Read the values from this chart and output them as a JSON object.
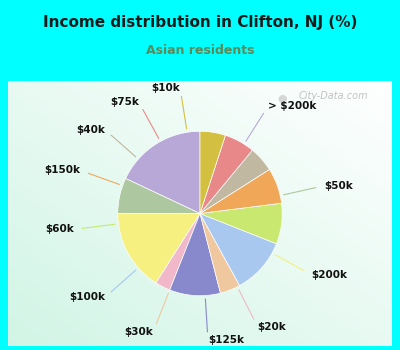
{
  "title": "Income distribution in Clifton, NJ (%)",
  "subtitle": "Asian residents",
  "title_color": "#1a1a1a",
  "subtitle_color": "#5a8a5a",
  "background_cyan": "#00ffff",
  "labels": [
    "> $200k",
    "$50k",
    "$200k",
    "$20k",
    "$125k",
    "$30k",
    "$100k",
    "$60k",
    "$150k",
    "$40k",
    "$75k",
    "$10k"
  ],
  "values": [
    18,
    7,
    16,
    3,
    10,
    4,
    11,
    8,
    7,
    5,
    6,
    5
  ],
  "colors": [
    "#b8a8d8",
    "#adc8a0",
    "#f5f080",
    "#f0b8c8",
    "#8888cc",
    "#f0c8a0",
    "#a8c8f0",
    "#c8e870",
    "#f0a858",
    "#c0b8a0",
    "#e88888",
    "#d4c040"
  ],
  "startangle": 90,
  "label_fontsize": 7.5,
  "watermark": "City-Data.com"
}
